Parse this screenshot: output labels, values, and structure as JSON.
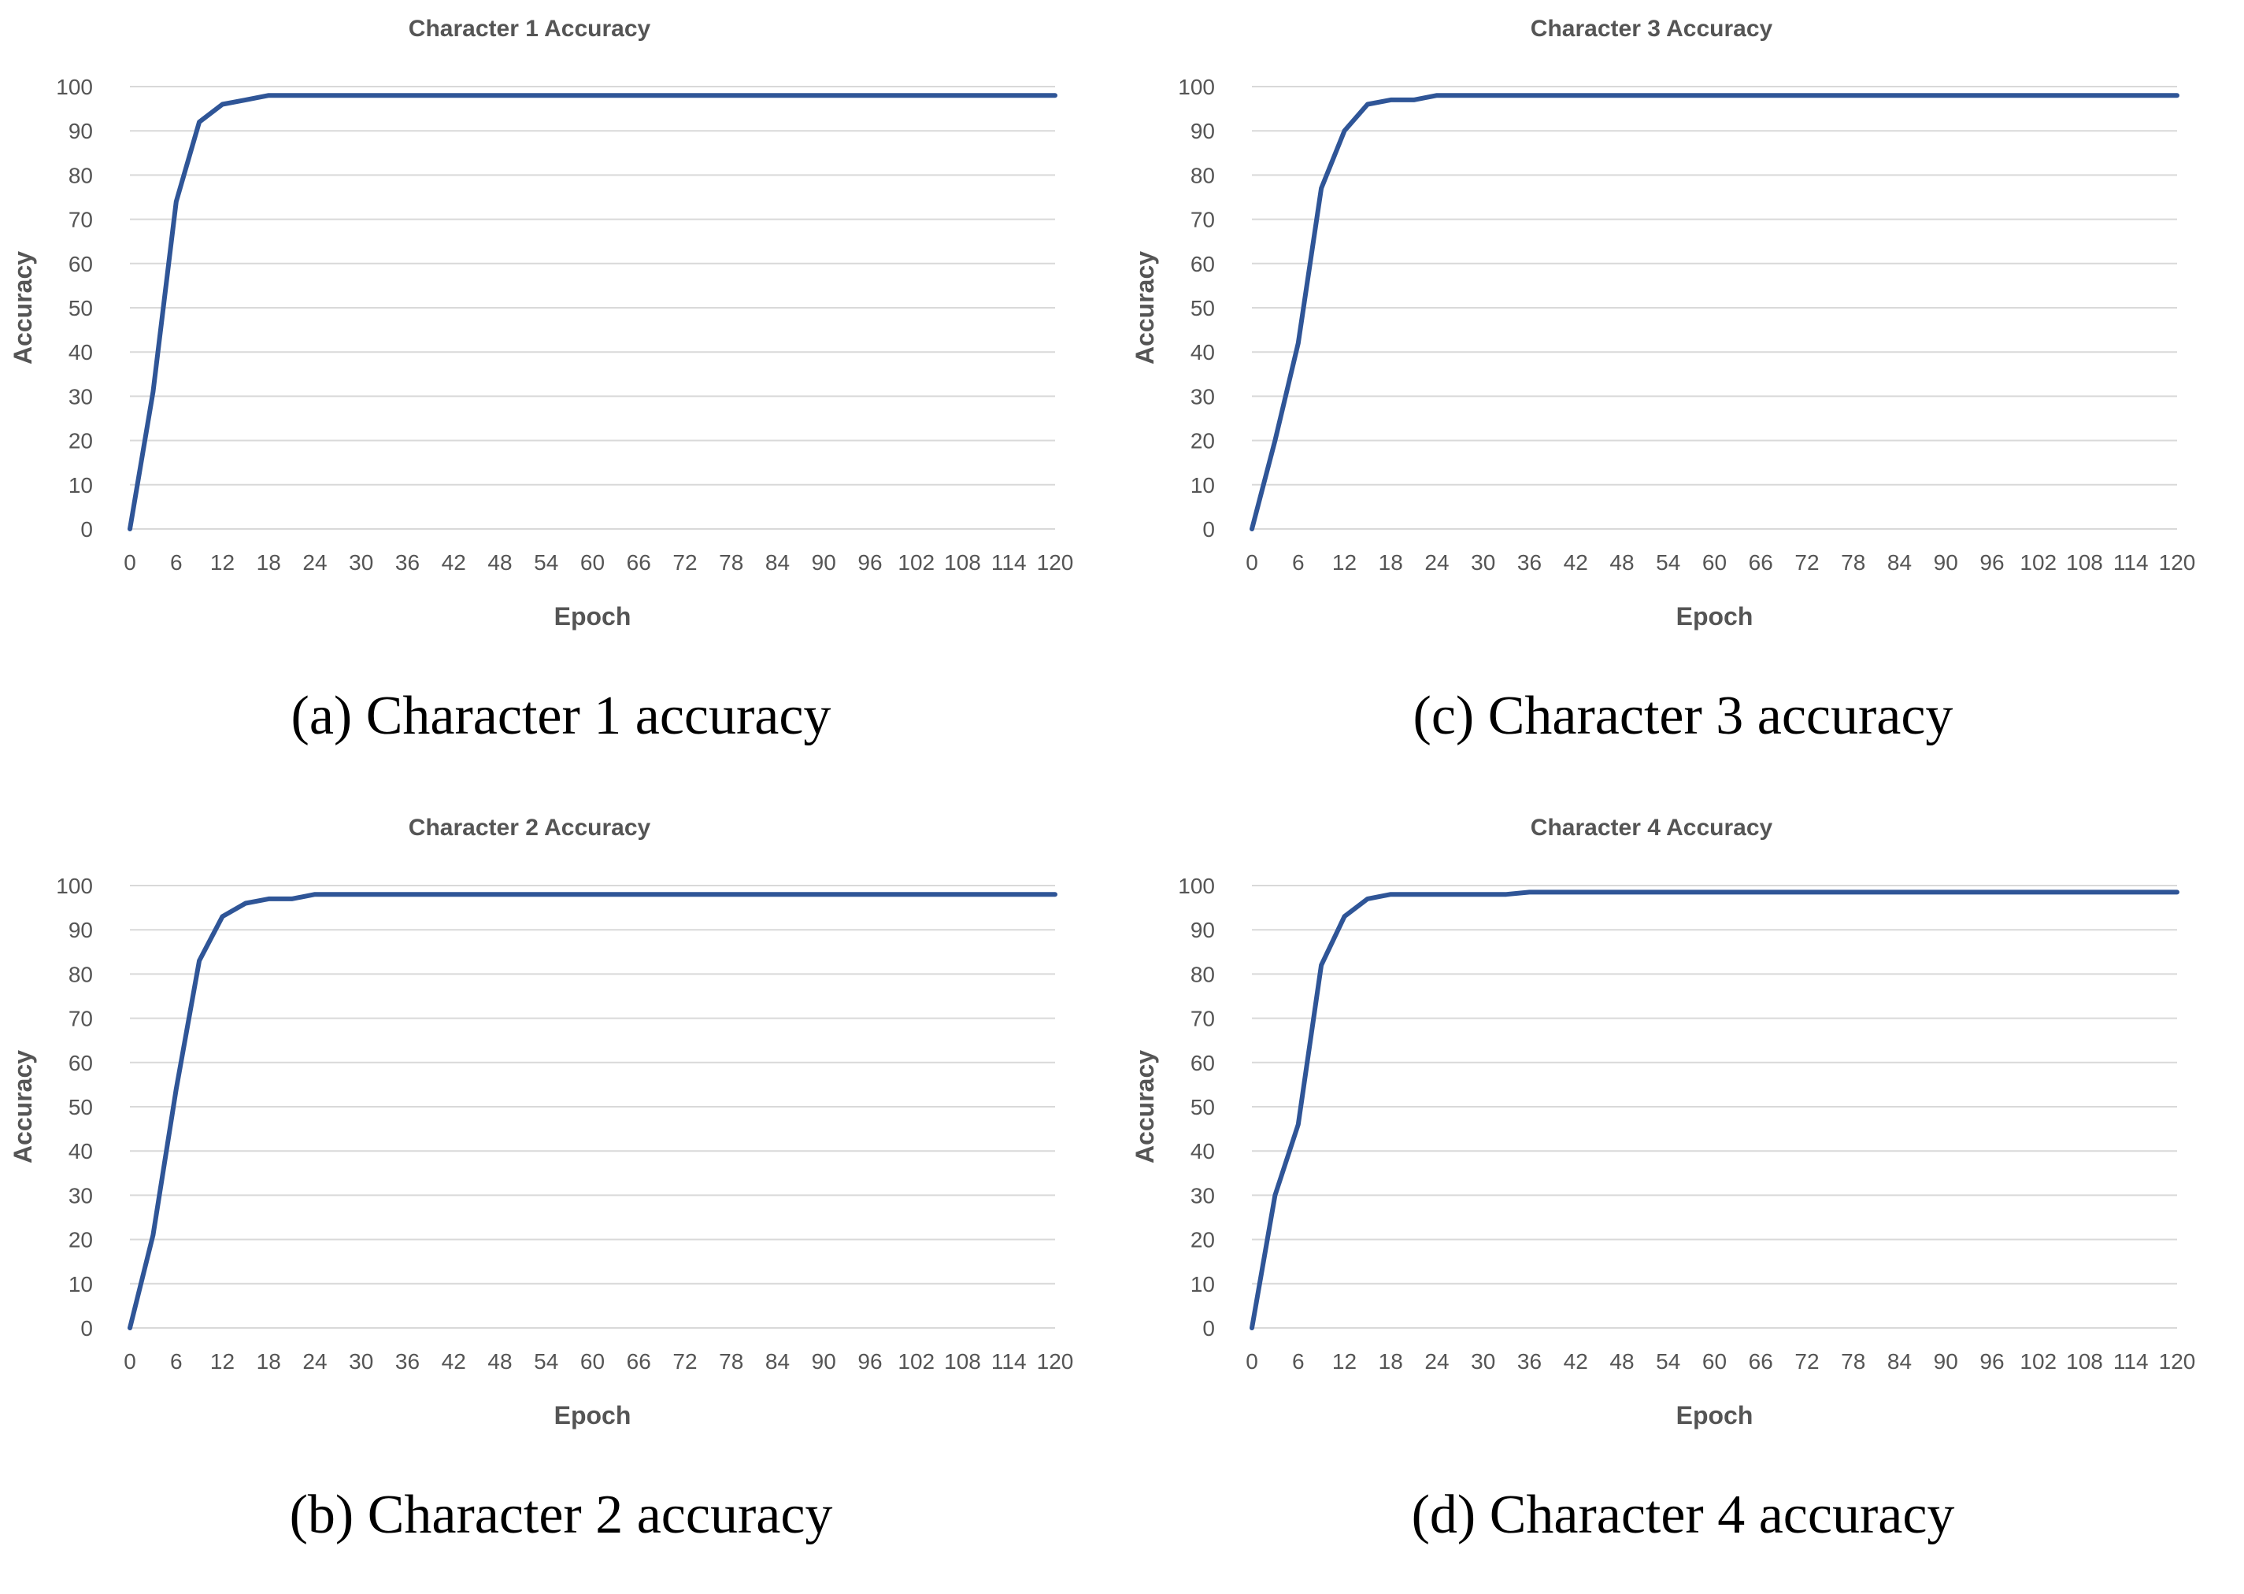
{
  "chart_data": [
    {
      "id": "a",
      "type": "line",
      "title": "Character 1 Accuracy",
      "caption": "(a) Character 1 accuracy",
      "xlabel": "Epoch",
      "ylabel": "Accuracy",
      "ylim": [
        0,
        100
      ],
      "xlim": [
        0,
        120
      ],
      "yticks": [
        "0",
        "10",
        "20",
        "30",
        "40",
        "50",
        "60",
        "70",
        "80",
        "90",
        "100"
      ],
      "xticks": [
        "0",
        "6",
        "12",
        "18",
        "24",
        "30",
        "36",
        "42",
        "48",
        "54",
        "60",
        "66",
        "72",
        "78",
        "84",
        "90",
        "96",
        "102",
        "108",
        "114",
        "120"
      ],
      "x": [
        0,
        3,
        6,
        9,
        12,
        15,
        18,
        21,
        120
      ],
      "y": [
        0,
        31,
        74,
        92,
        96,
        97,
        98,
        98,
        98
      ]
    },
    {
      "id": "b",
      "type": "line",
      "title": "Character 2 Accuracy",
      "caption": "(b) Character 2 accuracy",
      "xlabel": "Epoch",
      "ylabel": "Accuracy",
      "ylim": [
        0,
        100
      ],
      "xlim": [
        0,
        120
      ],
      "yticks": [
        "0",
        "10",
        "20",
        "30",
        "40",
        "50",
        "60",
        "70",
        "80",
        "90",
        "100"
      ],
      "xticks": [
        "0",
        "6",
        "12",
        "18",
        "24",
        "30",
        "36",
        "42",
        "48",
        "54",
        "60",
        "66",
        "72",
        "78",
        "84",
        "90",
        "96",
        "102",
        "108",
        "114",
        "120"
      ],
      "x": [
        0,
        3,
        6,
        9,
        12,
        15,
        18,
        21,
        24,
        120
      ],
      "y": [
        0,
        21,
        54,
        83,
        93,
        96,
        97,
        97,
        98,
        98
      ]
    },
    {
      "id": "c",
      "type": "line",
      "title": "Character 3 Accuracy",
      "caption": "(c) Character 3 accuracy",
      "xlabel": "Epoch",
      "ylabel": "Accuracy",
      "ylim": [
        0,
        100
      ],
      "xlim": [
        0,
        120
      ],
      "yticks": [
        "0",
        "10",
        "20",
        "30",
        "40",
        "50",
        "60",
        "70",
        "80",
        "90",
        "100"
      ],
      "xticks": [
        "0",
        "6",
        "12",
        "18",
        "24",
        "30",
        "36",
        "42",
        "48",
        "54",
        "60",
        "66",
        "72",
        "78",
        "84",
        "90",
        "96",
        "102",
        "108",
        "114",
        "120"
      ],
      "x": [
        0,
        3,
        6,
        9,
        12,
        15,
        18,
        21,
        24,
        120
      ],
      "y": [
        0,
        20,
        42,
        77,
        90,
        96,
        97,
        97,
        98,
        98
      ]
    },
    {
      "id": "d",
      "type": "line",
      "title": "Character 4 Accuracy",
      "caption": "(d) Character 4 accuracy",
      "xlabel": "Epoch",
      "ylabel": "Accuracy",
      "ylim": [
        0,
        100
      ],
      "xlim": [
        0,
        120
      ],
      "yticks": [
        "0",
        "10",
        "20",
        "30",
        "40",
        "50",
        "60",
        "70",
        "80",
        "90",
        "100"
      ],
      "xticks": [
        "0",
        "6",
        "12",
        "18",
        "24",
        "30",
        "36",
        "42",
        "48",
        "54",
        "60",
        "66",
        "72",
        "78",
        "84",
        "90",
        "96",
        "102",
        "108",
        "114",
        "120"
      ],
      "x": [
        0,
        3,
        6,
        9,
        12,
        15,
        18,
        21,
        33,
        36,
        120
      ],
      "y": [
        0,
        30,
        46,
        82,
        93,
        97,
        98,
        98,
        98,
        98.5,
        98.5
      ]
    }
  ],
  "colors": {
    "series": "#2f5597",
    "grid": "#d9d9d9",
    "text": "#555555"
  }
}
